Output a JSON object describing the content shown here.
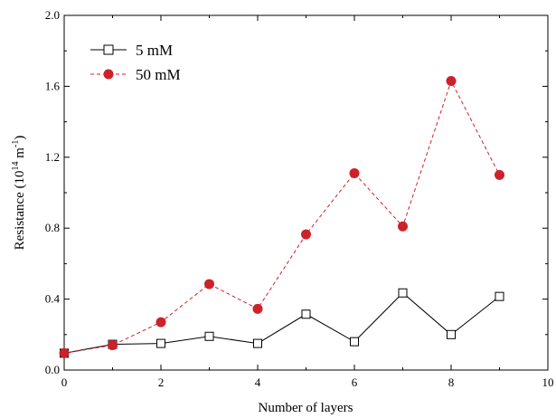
{
  "chart_data": {
    "type": "line",
    "title": "",
    "xlabel": "Number of layers",
    "ylabel": {
      "prefix": "Resistance (10",
      "exp1": "14",
      "mid": " m",
      "exp2": "-1",
      "suffix": ")"
    },
    "xlim": [
      0,
      10
    ],
    "ylim": [
      0.0,
      2.0
    ],
    "xticks": [
      "0",
      "2",
      "4",
      "6",
      "8",
      "10"
    ],
    "yticks": [
      "0.0",
      "0.4",
      "0.8",
      "1.2",
      "1.6",
      "2.0"
    ],
    "grid": false,
    "legend_position": "top-left",
    "x": [
      0,
      1,
      2,
      3,
      4,
      5,
      6,
      7,
      8,
      9
    ],
    "series": [
      {
        "name": "5 mM",
        "color": "#000000",
        "marker": "open-square",
        "line": "solid",
        "values": [
          0.095,
          0.145,
          0.15,
          0.19,
          0.15,
          0.315,
          0.16,
          0.435,
          0.2,
          0.415
        ]
      },
      {
        "name": "50 mM",
        "color": "#cc2229",
        "marker": "filled-circle",
        "line": "dashed",
        "values": [
          0.095,
          0.14,
          0.27,
          0.485,
          0.345,
          0.765,
          1.11,
          0.81,
          1.63,
          1.1
        ]
      }
    ]
  }
}
